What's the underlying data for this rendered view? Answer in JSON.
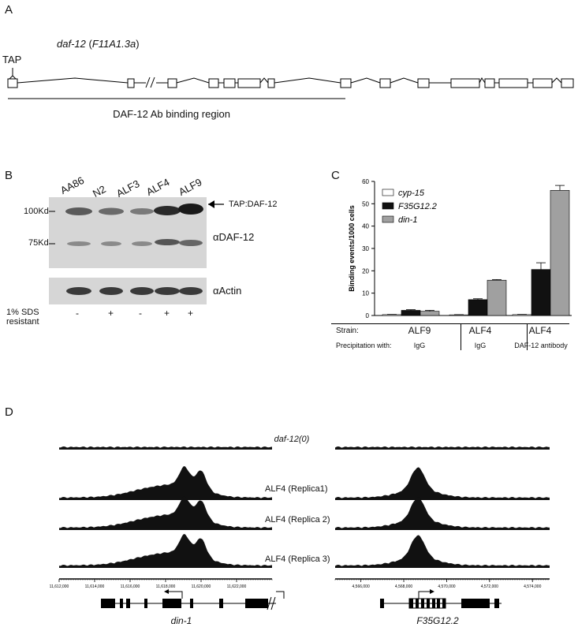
{
  "panels": {
    "a": "A",
    "b": "B",
    "c": "C",
    "d": "D"
  },
  "panel_a": {
    "gene_name": "daf-12",
    "gene_isoform": "F11A1.3a",
    "tag_label": "TAP",
    "region_label": "DAF-12 Ab binding region"
  },
  "panel_b": {
    "lanes": [
      "AA86",
      "N2",
      "ALF3",
      "ALF4",
      "ALF9"
    ],
    "mw_markers": [
      "100Kd",
      "75Kd"
    ],
    "band_label": "TAP:DAF-12",
    "antibody_label": "αDAF-12",
    "loading_label": "αActin",
    "sds_label_line1": "1% SDS",
    "sds_label_line2": "resistant",
    "sds_values": [
      "-",
      "+",
      "-",
      "+",
      "+"
    ]
  },
  "chart_data": {
    "type": "bar",
    "ylabel": "Binding events/1000 cells",
    "ylim": [
      0,
      60
    ],
    "yticks": [
      "0",
      "10",
      "20",
      "30",
      "40",
      "50",
      "60"
    ],
    "groups": [
      {
        "strain": "ALF9",
        "precipitation": "IgG"
      },
      {
        "strain": "ALF4",
        "precipitation": "IgG"
      },
      {
        "strain": "ALF4",
        "precipitation": "DAF-12 antibody"
      }
    ],
    "row_labels": {
      "strain": "Strain:",
      "precipitation": "Precipitation with:"
    },
    "series": [
      {
        "name": "cyp-15",
        "color": "#ffffff",
        "values": [
          0.4,
          0.3,
          0.4
        ],
        "errors": [
          0.1,
          0.1,
          0.1
        ]
      },
      {
        "name": "F35G12.2",
        "color": "#111111",
        "values": [
          2.3,
          7.1,
          20.6
        ],
        "errors": [
          0.3,
          0.4,
          3.0
        ]
      },
      {
        "name": "din-1",
        "color": "#a0a0a0",
        "values": [
          1.9,
          15.8,
          56.0
        ],
        "errors": [
          0.4,
          0.3,
          2.2
        ]
      }
    ],
    "legend_position": "top-left"
  },
  "panel_d": {
    "track_labels": [
      "daf-12(0)",
      "ALF4 (Replica1)",
      "ALF4 (Replica 2)",
      "ALF4 (Replica 3)"
    ],
    "left_axis_ticks": [
      "11,612,000",
      "11,614,000",
      "11,616,000",
      "11,618,000",
      "11,620,000",
      "11,622,000"
    ],
    "right_axis_ticks": [
      "4,566,000",
      "4,568,000",
      "4,570,000",
      "4,572,000",
      "4,574,000"
    ],
    "left_gene": "din-1",
    "right_gene": "F35G12.2"
  }
}
